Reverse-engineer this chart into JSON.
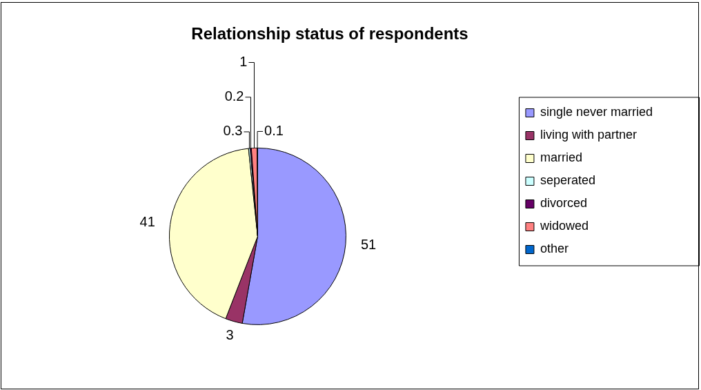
{
  "chart_data": {
    "type": "pie",
    "title": "Relationship status of respondents",
    "categories": [
      "single never married",
      "living with partner",
      "married",
      "seperated",
      "divorced",
      "widowed",
      "other"
    ],
    "values": [
      51,
      3,
      41,
      0.3,
      0.2,
      1,
      0.1
    ],
    "colors": [
      "#9999ff",
      "#993366",
      "#ffffcc",
      "#ccffff",
      "#660066",
      "#ff8080",
      "#0066cc"
    ],
    "data_labels": true,
    "legend": "right"
  }
}
